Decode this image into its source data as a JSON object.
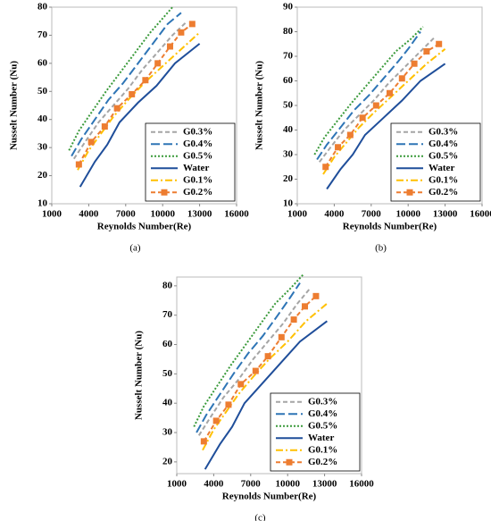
{
  "chart_data": [
    {
      "type": "line",
      "caption": "(a)",
      "x_label": "Reynolds Number(Re)",
      "y_label": "Nusselt Number (Nu)",
      "xlim": [
        1000,
        16000
      ],
      "xticks": [
        1000,
        4000,
        7000,
        10000,
        13000,
        16000
      ],
      "ylim": [
        10,
        80
      ],
      "yticks": [
        10,
        20,
        30,
        40,
        50,
        60,
        70,
        80
      ],
      "legend": "lower right",
      "series": [
        {
          "name": "G0.3%",
          "color": "#a5a5a5",
          "style": "dashed",
          "x": [
            2800,
            3700,
            4800,
            6000,
            7200,
            8400,
            9600,
            10800,
            12000
          ],
          "values": [
            26,
            32,
            39,
            45,
            51,
            58,
            64,
            70,
            75
          ]
        },
        {
          "name": "G0.4%",
          "color": "#2e75b6",
          "style": "longdash",
          "x": [
            2600,
            3400,
            4500,
            5600,
            6800,
            8000,
            9200,
            10400,
            11500
          ],
          "values": [
            27,
            33,
            40,
            47,
            53,
            60,
            67,
            74,
            78
          ]
        },
        {
          "name": "G0.5%",
          "color": "#3a9a3a",
          "style": "dotted",
          "x": [
            2400,
            3200,
            4300,
            5400,
            6600,
            7800,
            9000,
            10200,
            10800
          ],
          "values": [
            29,
            36,
            43,
            50,
            57,
            64,
            71,
            77,
            80
          ]
        },
        {
          "name": "Water",
          "color": "#1f4e9a",
          "style": "solid",
          "x": [
            3300,
            4500,
            5500,
            6500,
            8000,
            9500,
            11000,
            13000
          ],
          "values": [
            16,
            25,
            31,
            39,
            46,
            52,
            60,
            67
          ]
        },
        {
          "name": "G0.1%",
          "color": "#ffc000",
          "style": "dashdot",
          "x": [
            3100,
            4000,
            5000,
            6000,
            7200,
            8500,
            10000,
            11500,
            13000
          ],
          "values": [
            22,
            29,
            35,
            41,
            47,
            53,
            59,
            65,
            71
          ]
        },
        {
          "name": "G0.2%",
          "color": "#ed7d31",
          "style": "dashed",
          "marker": "square",
          "x": [
            3200,
            4200,
            5300,
            6300,
            7500,
            8600,
            9600,
            10600,
            11500,
            12400
          ],
          "values": [
            24,
            32,
            37.5,
            44,
            49,
            54,
            60,
            66,
            71,
            74
          ]
        }
      ]
    },
    {
      "type": "line",
      "caption": "(b)",
      "x_label": "Reynolds Number(Re)",
      "y_label": "Nusselt Number (Nu)",
      "xlim": [
        1000,
        16000
      ],
      "xticks": [
        1000,
        4000,
        7000,
        10000,
        13000,
        16000
      ],
      "ylim": [
        10,
        90
      ],
      "yticks": [
        10,
        20,
        30,
        40,
        50,
        60,
        70,
        80,
        90
      ],
      "legend": "lower right",
      "series": [
        {
          "name": "G0.3%",
          "color": "#a5a5a5",
          "style": "dashed",
          "x": [
            2800,
            3700,
            4800,
            6000,
            7200,
            8400,
            9600,
            10800,
            12200
          ],
          "values": [
            27,
            33,
            40,
            46,
            52,
            59,
            65,
            71,
            78
          ]
        },
        {
          "name": "G0.4%",
          "color": "#2e75b6",
          "style": "longdash",
          "x": [
            2600,
            3400,
            4500,
            5600,
            6800,
            8000,
            9200,
            10000,
            11000
          ],
          "values": [
            28,
            34,
            41,
            48,
            54,
            61,
            68,
            73,
            80
          ]
        },
        {
          "name": "G0.5%",
          "color": "#3a9a3a",
          "style": "dotted",
          "x": [
            2400,
            3200,
            4300,
            5400,
            6600,
            7800,
            9000,
            10200,
            11200
          ],
          "values": [
            30,
            37,
            44,
            51,
            58,
            65,
            72,
            77,
            82
          ]
        },
        {
          "name": "Water",
          "color": "#1f4e9a",
          "style": "solid",
          "x": [
            3400,
            4500,
            5500,
            6500,
            8000,
            9500,
            11000,
            13000
          ],
          "values": [
            16,
            24,
            30,
            38,
            45,
            52,
            60,
            67
          ]
        },
        {
          "name": "G0.1%",
          "color": "#ffc000",
          "style": "dashdot",
          "x": [
            3100,
            4000,
            5000,
            6000,
            7200,
            8500,
            10000,
            11500,
            13000
          ],
          "values": [
            22,
            29,
            35,
            41,
            47,
            53,
            60,
            67,
            73
          ]
        },
        {
          "name": "G0.2%",
          "color": "#ed7d31",
          "style": "dashed",
          "marker": "square",
          "x": [
            3300,
            4300,
            5300,
            6300,
            7400,
            8500,
            9500,
            10500,
            11500,
            12500
          ],
          "values": [
            25,
            33,
            38,
            45,
            50,
            55,
            61,
            67,
            72,
            75
          ]
        }
      ]
    },
    {
      "type": "line",
      "caption": "(c)",
      "x_label": "Reynolds Number(Re)",
      "y_label": "Nusselt Number (Nu)",
      "xlim": [
        1000,
        16000
      ],
      "xticks": [
        1000,
        4000,
        7000,
        10000,
        13000,
        16000
      ],
      "ylim": [
        16,
        83
      ],
      "yticks": [
        20,
        30,
        40,
        50,
        60,
        70,
        80
      ],
      "legend": "lower right",
      "series": [
        {
          "name": "G0.3%",
          "color": "#a5a5a5",
          "style": "dashed",
          "x": [
            2800,
            3700,
            4800,
            6000,
            7200,
            8400,
            9600,
            10800,
            11800
          ],
          "values": [
            29,
            35,
            42,
            48,
            55,
            61,
            67,
            74,
            79
          ]
        },
        {
          "name": "G0.4%",
          "color": "#2e75b6",
          "style": "longdash",
          "x": [
            2600,
            3400,
            4500,
            5600,
            6800,
            8000,
            9200,
            10200,
            11000
          ],
          "values": [
            30,
            36,
            43,
            50,
            57,
            63,
            70,
            76,
            81
          ]
        },
        {
          "name": "G0.5%",
          "color": "#3a9a3a",
          "style": "dotted",
          "x": [
            2400,
            3200,
            4300,
            5400,
            6600,
            7800,
            9000,
            10200,
            11300
          ],
          "values": [
            32,
            39,
            46,
            53,
            60,
            67,
            74,
            79,
            84
          ]
        },
        {
          "name": "Water",
          "color": "#1f4e9a",
          "style": "solid",
          "x": [
            3300,
            4500,
            5500,
            6500,
            8000,
            9500,
            11000,
            13200
          ],
          "values": [
            17.5,
            26,
            32,
            40,
            47,
            54,
            61,
            68
          ]
        },
        {
          "name": "G0.1%",
          "color": "#ffc000",
          "style": "dashdot",
          "x": [
            3100,
            4000,
            5000,
            6000,
            7200,
            8500,
            10000,
            11500,
            13200
          ],
          "values": [
            24,
            31,
            37,
            43,
            49,
            55,
            61,
            68,
            74
          ]
        },
        {
          "name": "G0.2%",
          "color": "#ed7d31",
          "style": "dashed",
          "marker": "square",
          "x": [
            3200,
            4200,
            5200,
            6200,
            7400,
            8400,
            9500,
            10500,
            11400,
            12300
          ],
          "values": [
            27,
            34,
            39.5,
            46.5,
            51,
            56,
            62.5,
            68.5,
            73,
            76.5
          ]
        }
      ]
    }
  ]
}
